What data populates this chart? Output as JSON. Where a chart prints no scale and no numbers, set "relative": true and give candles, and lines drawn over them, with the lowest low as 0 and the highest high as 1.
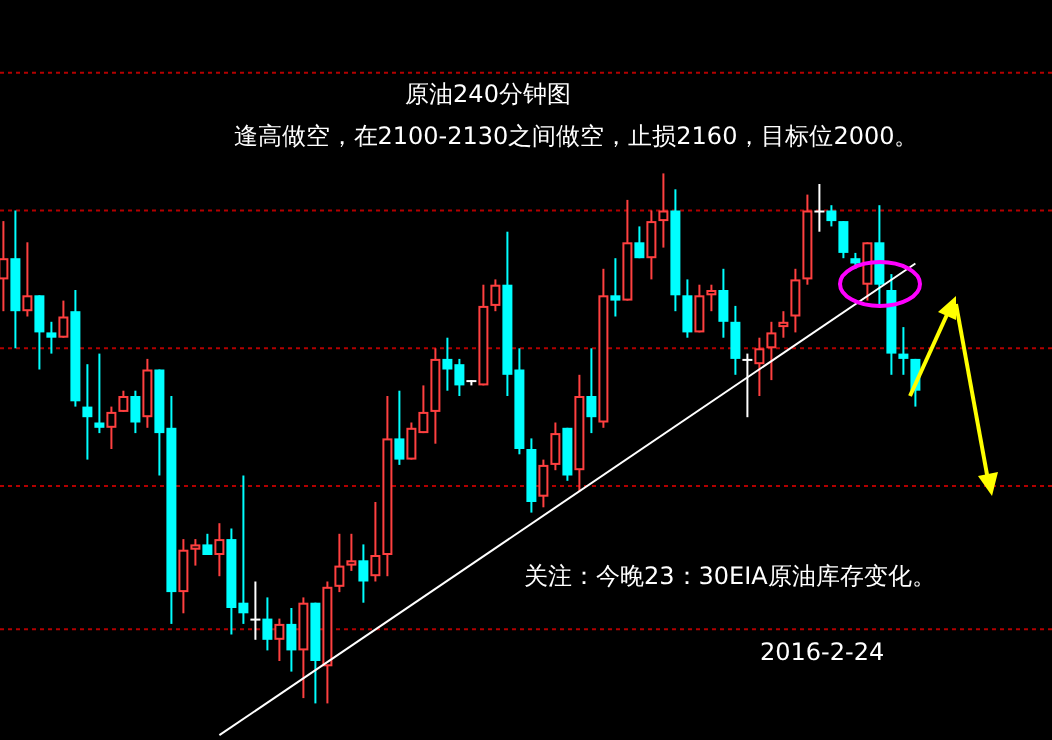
{
  "chart_data": {
    "type": "candlestick",
    "title": "原油240分钟图",
    "subtitle": "逢高做空，在2100-2130之间做空，止损2160，目标位2000。",
    "annotations": [
      "关注：今晚23：30EIA原油库存变化。",
      "2016-2-24"
    ],
    "relative": true,
    "categories": [
      null,
      null,
      null,
      null,
      null,
      null,
      null,
      null,
      null,
      null,
      null,
      null,
      null,
      null,
      null,
      null,
      null,
      null,
      null,
      null,
      null,
      null,
      null,
      null,
      null,
      null,
      null,
      null,
      null,
      null,
      null,
      null,
      null,
      null,
      null,
      null,
      null,
      null,
      null,
      null,
      null,
      null,
      null,
      null,
      null,
      null,
      null,
      null,
      null,
      null,
      null,
      null,
      null,
      null,
      null,
      null,
      null,
      null,
      null,
      null,
      null,
      null,
      null,
      null,
      null,
      null,
      null,
      null,
      null,
      null,
      null,
      null,
      null,
      null,
      null,
      null,
      null
    ],
    "ohlc": [
      [
        0.8,
        0.91,
        0.74,
        0.84
      ],
      [
        0.84,
        0.93,
        0.67,
        0.74
      ],
      [
        0.74,
        0.87,
        0.73,
        0.77
      ],
      [
        0.77,
        0.77,
        0.63,
        0.7
      ],
      [
        0.7,
        0.72,
        0.66,
        0.69
      ],
      [
        0.69,
        0.76,
        0.69,
        0.73
      ],
      [
        0.74,
        0.78,
        0.56,
        0.57
      ],
      [
        0.56,
        0.64,
        0.46,
        0.54
      ],
      [
        0.53,
        0.66,
        0.51,
        0.52
      ],
      [
        0.52,
        0.56,
        0.48,
        0.55
      ],
      [
        0.55,
        0.59,
        0.55,
        0.58
      ],
      [
        0.58,
        0.59,
        0.51,
        0.53
      ],
      [
        0.54,
        0.65,
        0.52,
        0.63
      ],
      [
        0.63,
        0.63,
        0.43,
        0.51
      ],
      [
        0.52,
        0.58,
        0.15,
        0.21
      ],
      [
        0.21,
        0.31,
        0.17,
        0.29
      ],
      [
        0.29,
        0.31,
        0.26,
        0.3
      ],
      [
        0.3,
        0.32,
        0.28,
        0.28
      ],
      [
        0.28,
        0.34,
        0.24,
        0.31
      ],
      [
        0.31,
        0.33,
        0.13,
        0.18
      ],
      [
        0.19,
        0.43,
        0.15,
        0.17
      ],
      [
        0.16,
        0.23,
        0.12,
        0.16
      ],
      [
        0.16,
        0.2,
        0.1,
        0.12
      ],
      [
        0.12,
        0.16,
        0.08,
        0.15
      ],
      [
        0.15,
        0.18,
        0.06,
        0.1
      ],
      [
        0.1,
        0.2,
        0.01,
        0.19
      ],
      [
        0.19,
        0.19,
        0.0,
        0.08
      ],
      [
        0.07,
        0.23,
        0,
        0.22
      ],
      [
        0.22,
        0.32,
        0.21,
        0.26
      ],
      [
        0.26,
        0.32,
        0.25,
        0.27
      ],
      [
        0.27,
        0.3,
        0.19,
        0.23
      ],
      [
        0.24,
        0.38,
        0.23,
        0.28
      ],
      [
        0.28,
        0.58,
        0.24,
        0.5
      ],
      [
        0.5,
        0.59,
        0.45,
        0.46
      ],
      [
        0.46,
        0.53,
        0.46,
        0.52
      ],
      [
        0.51,
        0.6,
        0.51,
        0.55
      ],
      [
        0.55,
        0.67,
        0.49,
        0.65
      ],
      [
        0.65,
        0.69,
        0.59,
        0.63
      ],
      [
        0.64,
        0.65,
        0.58,
        0.6
      ],
      [
        0.61,
        0.61,
        0.6,
        0.61
      ],
      [
        0.6,
        0.79,
        0.6,
        0.75
      ],
      [
        0.75,
        0.8,
        0.74,
        0.79
      ],
      [
        0.79,
        0.89,
        0.58,
        0.62
      ],
      [
        0.63,
        0.67,
        0.47,
        0.48
      ],
      [
        0.48,
        0.5,
        0.36,
        0.38
      ],
      [
        0.39,
        0.46,
        0.37,
        0.45
      ],
      [
        0.45,
        0.53,
        0.44,
        0.51
      ],
      [
        0.52,
        0.52,
        0.42,
        0.43
      ],
      [
        0.44,
        0.62,
        0.4,
        0.58
      ],
      [
        0.58,
        0.67,
        0.51,
        0.54
      ],
      [
        0.53,
        0.82,
        0.52,
        0.77
      ],
      [
        0.77,
        0.84,
        0.73,
        0.76
      ],
      [
        0.76,
        0.95,
        0.76,
        0.87
      ],
      [
        0.87,
        0.9,
        0.84,
        0.84
      ],
      [
        0.84,
        0.93,
        0.8,
        0.91
      ],
      [
        0.91,
        1,
        0.86,
        0.93
      ],
      [
        0.93,
        0.97,
        0.74,
        0.77
      ],
      [
        0.77,
        0.8,
        0.69,
        0.7
      ],
      [
        0.7,
        0.79,
        0.7,
        0.77
      ],
      [
        0.77,
        0.79,
        0.74,
        0.78
      ],
      [
        0.78,
        0.82,
        0.69,
        0.72
      ],
      [
        0.72,
        0.75,
        0.62,
        0.65
      ],
      [
        0.65,
        0.66,
        0.54,
        0.65
      ],
      [
        0.64,
        0.69,
        0.58,
        0.67
      ],
      [
        0.67,
        0.72,
        0.61,
        0.7
      ],
      [
        0.71,
        0.74,
        0.69,
        0.72
      ],
      [
        0.73,
        0.82,
        0.7,
        0.8
      ],
      [
        0.8,
        0.96,
        0.79,
        0.93
      ],
      [
        0.93,
        0.98,
        0.89,
        0.93
      ],
      [
        0.93,
        0.94,
        0.9,
        0.91
      ],
      [
        0.91,
        0.91,
        0.84,
        0.85
      ],
      [
        0.84,
        0.85,
        0.82,
        0.83
      ],
      [
        0.79,
        0.87,
        0.76,
        0.87
      ],
      [
        0.87,
        0.94,
        0.75,
        0.79
      ],
      [
        0.78,
        0.81,
        0.62,
        0.66
      ],
      [
        0.66,
        0.71,
        0.62,
        0.65
      ],
      [
        0.65,
        0.65,
        0.56,
        0.59
      ]
    ],
    "series": [
      {
        "type": "line",
        "color": "#ffffff",
        "values": [
          null,
          null,
          null,
          null,
          null,
          null,
          null,
          null,
          null,
          null,
          null,
          null,
          null,
          null,
          null,
          null,
          null,
          null,
          -0.06,
          null,
          null,
          null,
          null,
          null,
          null,
          null,
          null,
          null,
          null,
          null,
          null,
          null,
          null,
          null,
          null,
          null,
          null,
          null,
          null,
          null,
          null,
          null,
          null,
          null,
          null,
          null,
          null,
          null,
          null,
          null,
          null,
          null,
          null,
          null,
          null,
          null,
          null,
          null,
          null,
          null,
          null,
          null,
          null,
          null,
          null,
          null,
          null,
          null,
          null,
          null,
          null,
          null,
          null,
          null,
          null,
          null,
          0.83
        ]
      }
    ],
    "ref_lines": [
      {
        "axis": "y",
        "value": 1.19,
        "color": "#b30000",
        "line_style": "dotted"
      },
      {
        "axis": "y",
        "value": 0.93,
        "color": "#b30000",
        "line_style": "dotted"
      },
      {
        "axis": "y",
        "value": 0.67,
        "color": "#b30000",
        "line_style": "dotted"
      },
      {
        "axis": "y",
        "value": 0.41,
        "color": "#b30000",
        "line_style": "dotted"
      },
      {
        "axis": "y",
        "value": 0.14,
        "color": "#b30000",
        "line_style": "dotted"
      }
    ]
  }
}
